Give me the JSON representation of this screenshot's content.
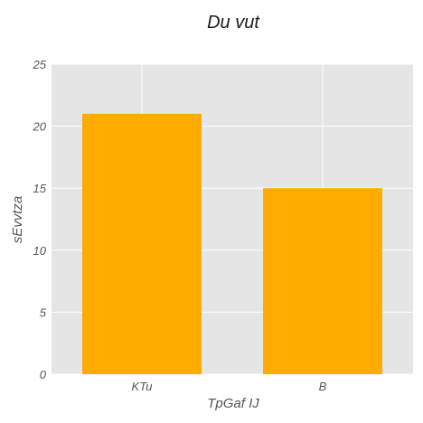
{
  "chart_data": {
    "type": "bar",
    "title": "Du vut",
    "xlabel": "TpGaf IJ",
    "ylabel": "sEvvtza",
    "categories": [
      "KTu",
      "B"
    ],
    "values": [
      21,
      15
    ],
    "ylim": [
      0,
      25
    ],
    "yticks": [
      "0",
      "5",
      "10",
      "15",
      "20",
      "25"
    ],
    "grid": true,
    "bar_color": "#ffab00",
    "plot_background": "#e5e5e5",
    "grid_color": "#ffffff"
  }
}
